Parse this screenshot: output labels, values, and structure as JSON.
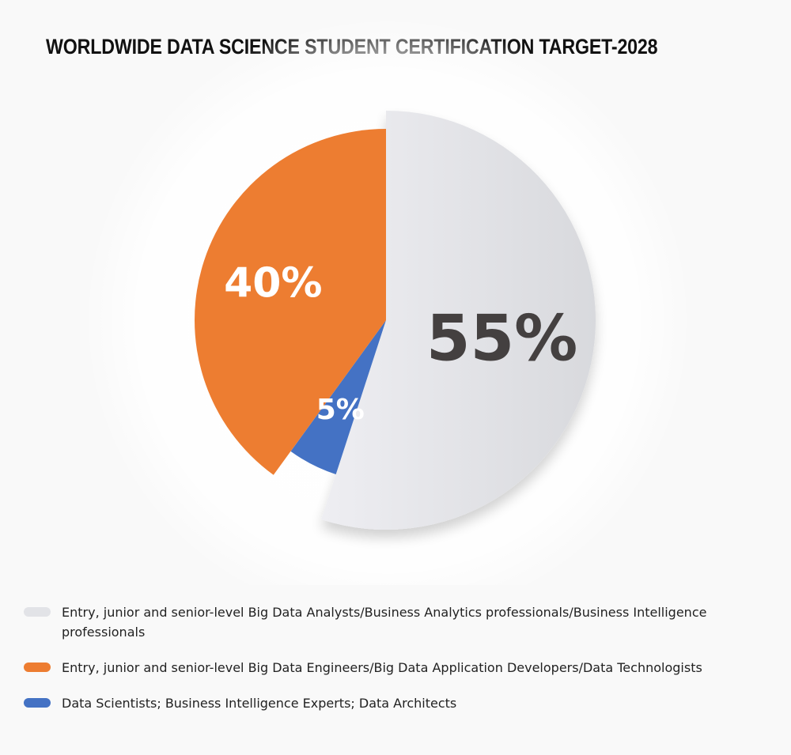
{
  "chart_data": {
    "type": "pie",
    "title": "WORLDWIDE DATA SCIENCE STUDENT CERTIFICATION TARGET-2028",
    "series": [
      {
        "name": "Entry, junior and senior-level Big Data Analysts/Business Analytics professionals/Business Intelligence professionals",
        "value": 55,
        "label": "55%",
        "color": "#e2e3e7",
        "label_color": "#444040"
      },
      {
        "name": "Data Scientists; Business Intelligence Experts; Data Architects",
        "value": 5,
        "label": "5%",
        "color": "#4472c4",
        "label_color": "#ffffff"
      },
      {
        "name": "Entry, junior and senior-level Big Data Engineers/Big Data Application Developers/Data Technologists",
        "value": 40,
        "label": "40%",
        "color": "#ed7d31",
        "label_color": "#ffffff"
      }
    ],
    "legend": {
      "position": "bottom",
      "order": [
        0,
        2,
        1
      ]
    }
  }
}
